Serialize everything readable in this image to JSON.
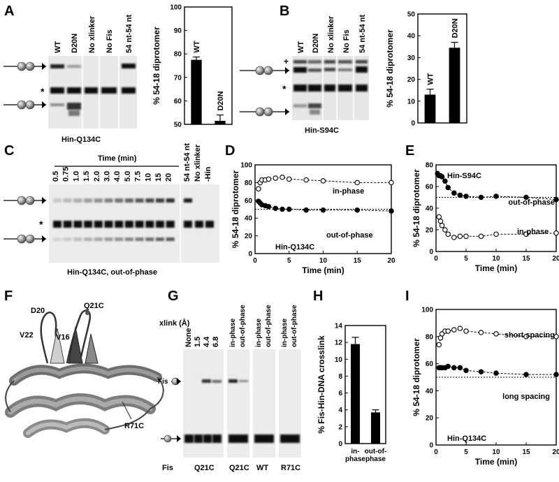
{
  "panels": {
    "A": {
      "label": "A",
      "lanes": [
        "WT",
        "D20N",
        "No xlinker",
        "No Fis",
        "54 nt-54 nt"
      ],
      "caption": "Hin-Q134C"
    },
    "B": {
      "label": "B",
      "lanes": [
        "WT",
        "D20N",
        "No xlinker",
        "No Fis",
        "54 nt-54 nt"
      ],
      "caption": "Hin-S94C"
    },
    "C": {
      "label": "C",
      "time_title": "Time (min)",
      "lanes": [
        "0.5",
        "0.75",
        "1.0",
        "1.5",
        "2.0",
        "3.0",
        "4.0",
        "5.0",
        "7.5",
        "10",
        "15",
        "20",
        "54 nt-54 nt",
        "No xlinker",
        "-Hin"
      ],
      "caption": "Hin-Q134C, out-of-phase"
    },
    "D": {
      "label": "D"
    },
    "E": {
      "label": "E"
    },
    "F": {
      "label": "F",
      "residues": [
        "D20",
        "Q21C",
        "V22",
        "V16",
        "R71C"
      ]
    },
    "G": {
      "label": "G",
      "xlink_title": "xlink (Å)",
      "lanes1": [
        "None",
        "1.5",
        "4.4",
        "6.8"
      ],
      "lanes_phase": [
        "in-phase",
        "out-of-phase"
      ],
      "fis_label": "Fis",
      "fis_band": "Fis",
      "groups": [
        "Q21C",
        "Q21C",
        "WT",
        "R71C"
      ]
    },
    "H": {
      "label": "H"
    },
    "I": {
      "label": "I"
    },
    "star": "*"
  },
  "chart_data": [
    {
      "panel": "A",
      "type": "bar",
      "categories": [
        "WT",
        "D20N"
      ],
      "values": [
        77.5,
        51.5
      ],
      "errors": [
        1.2,
        2.5
      ],
      "ylabel": "% 54-18 diprotomer",
      "ylim": [
        50,
        100
      ],
      "yticks": [
        50,
        60,
        70,
        80,
        90,
        100
      ]
    },
    {
      "panel": "B",
      "type": "bar",
      "categories": [
        "WT",
        "D20N"
      ],
      "values": [
        13,
        34.5
      ],
      "errors": [
        2.5,
        2.5
      ],
      "ylabel": "% 54-18 diprotomer",
      "ylim": [
        0,
        50
      ],
      "yticks": [
        0,
        10,
        20,
        30,
        40,
        50
      ]
    },
    {
      "panel": "D",
      "type": "scatter",
      "xlabel": "Time (min)",
      "ylabel": "% 54-18 diprotomer",
      "xlim": [
        0,
        20
      ],
      "ylim": [
        0,
        100
      ],
      "xticks": [
        0,
        5,
        10,
        15,
        20
      ],
      "yticks": [
        0,
        20,
        40,
        60,
        80,
        100
      ],
      "annotation": "Hin-Q134C",
      "reference_y": 50,
      "series": [
        {
          "name": "in-phase",
          "marker": "open",
          "x": [
            0.5,
            0.75,
            1.0,
            1.5,
            2.0,
            3.0,
            4.0,
            5.0,
            7.5,
            10,
            15,
            20
          ],
          "y": [
            73,
            80,
            83,
            83,
            84,
            85,
            86,
            84,
            83,
            82,
            80,
            80
          ]
        },
        {
          "name": "out-of-phase",
          "marker": "filled",
          "x": [
            0.5,
            0.75,
            1.0,
            1.5,
            2.0,
            3.0,
            4.0,
            5.0,
            7.5,
            10,
            15,
            20
          ],
          "y": [
            59,
            57,
            55,
            54,
            53,
            51,
            50,
            50,
            49,
            49,
            49,
            48
          ]
        }
      ]
    },
    {
      "panel": "E",
      "type": "scatter",
      "xlabel": "Time (min)",
      "ylabel": "% 54-18 diprotomer",
      "xlim": [
        0,
        20
      ],
      "ylim": [
        0,
        80
      ],
      "xticks": [
        0,
        5,
        10,
        15,
        20
      ],
      "yticks": [
        0,
        20,
        40,
        60,
        80
      ],
      "annotation": "Hin-S94C",
      "reference_y": 50,
      "series": [
        {
          "name": "out-of-phase",
          "marker": "filled",
          "x": [
            0.25,
            0.5,
            0.75,
            1.0,
            1.5,
            2.0,
            3.0,
            4.0,
            5.0,
            7.5,
            10,
            15,
            20
          ],
          "y": [
            72,
            70,
            70,
            69,
            65,
            59,
            54,
            52,
            51,
            50,
            51,
            50,
            48
          ]
        },
        {
          "name": "in-phase",
          "marker": "open",
          "x": [
            0.5,
            0.75,
            1.0,
            1.5,
            2.0,
            3.0,
            4.0,
            5.0,
            7.5,
            10,
            15,
            20
          ],
          "y": [
            32,
            28,
            24,
            20,
            16,
            13,
            14,
            14,
            14,
            16,
            16,
            17
          ]
        }
      ]
    },
    {
      "panel": "H",
      "type": "bar",
      "categories": [
        "in-\nphase",
        "out-of-\nphase"
      ],
      "values": [
        11.8,
        3.7
      ],
      "errors": [
        0.8,
        0.3
      ],
      "ylabel": "% Fis-Hin-DNA crosslink",
      "ylim": [
        0,
        14
      ],
      "yticks": [
        0,
        2,
        4,
        6,
        8,
        10,
        12,
        14
      ]
    },
    {
      "panel": "I",
      "type": "scatter",
      "xlabel": "Time (min)",
      "ylabel": "% 54-18 diprotomer",
      "xlim": [
        0,
        20
      ],
      "ylim": [
        0,
        100
      ],
      "xticks": [
        0,
        5,
        10,
        15,
        20
      ],
      "yticks": [
        0,
        20,
        40,
        60,
        80,
        100
      ],
      "annotation": "Hin-Q134C",
      "reference_y": 50,
      "series": [
        {
          "name": "short spacing",
          "marker": "open",
          "x": [
            0.5,
            0.75,
            1.0,
            1.5,
            2.0,
            3.0,
            4.0,
            5.0,
            7.5,
            10,
            15,
            20
          ],
          "y": [
            74,
            79,
            82,
            84,
            84,
            85,
            86,
            84,
            83,
            82,
            80,
            80
          ]
        },
        {
          "name": "long spacing",
          "marker": "filled",
          "x": [
            0.5,
            0.75,
            1.0,
            1.5,
            2.0,
            3.0,
            4.0,
            5.0,
            7.5,
            10,
            15,
            20
          ],
          "y": [
            57,
            57,
            57,
            57,
            58,
            57,
            57,
            55,
            54,
            53,
            52,
            52
          ]
        }
      ]
    }
  ]
}
